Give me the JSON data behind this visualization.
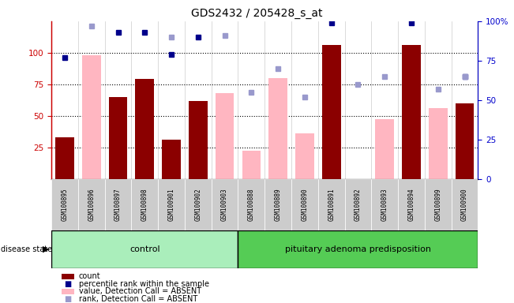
{
  "title": "GDS2432 / 205428_s_at",
  "samples": [
    "GSM100895",
    "GSM100896",
    "GSM100897",
    "GSM100898",
    "GSM100901",
    "GSM100902",
    "GSM100903",
    "GSM100888",
    "GSM100889",
    "GSM100890",
    "GSM100891",
    "GSM100892",
    "GSM100893",
    "GSM100894",
    "GSM100899",
    "GSM100900"
  ],
  "n_control": 7,
  "count_values": [
    33,
    null,
    65,
    79,
    31,
    62,
    null,
    null,
    null,
    null,
    106,
    null,
    null,
    106,
    null,
    60
  ],
  "count_absent_values": [
    null,
    98,
    null,
    null,
    null,
    null,
    68,
    22,
    80,
    36,
    null,
    null,
    47,
    null,
    56,
    null
  ],
  "percentile_rank": [
    77,
    null,
    93,
    93,
    79,
    90,
    null,
    null,
    null,
    null,
    99,
    null,
    null,
    99,
    null,
    65
  ],
  "percentile_rank_absent": [
    null,
    97,
    null,
    null,
    90,
    null,
    91,
    55,
    70,
    52,
    null,
    60,
    65,
    null,
    57,
    65
  ],
  "ylim_left": [
    0,
    125
  ],
  "ylim_right": [
    0,
    100
  ],
  "yticks_left": [
    25,
    50,
    75,
    100
  ],
  "yticks_right": [
    0,
    25,
    50,
    75,
    100
  ],
  "bar_color_count": "#8B0000",
  "bar_color_absent": "#FFB6C1",
  "dot_color_percentile": "#00008B",
  "dot_color_absent_rank": "#9999CC",
  "color_control": "#AAEEBB",
  "color_pituitary": "#55CC55",
  "yaxis_left_color": "#CC0000",
  "yaxis_right_color": "#0000CC",
  "gridline_color": "black"
}
